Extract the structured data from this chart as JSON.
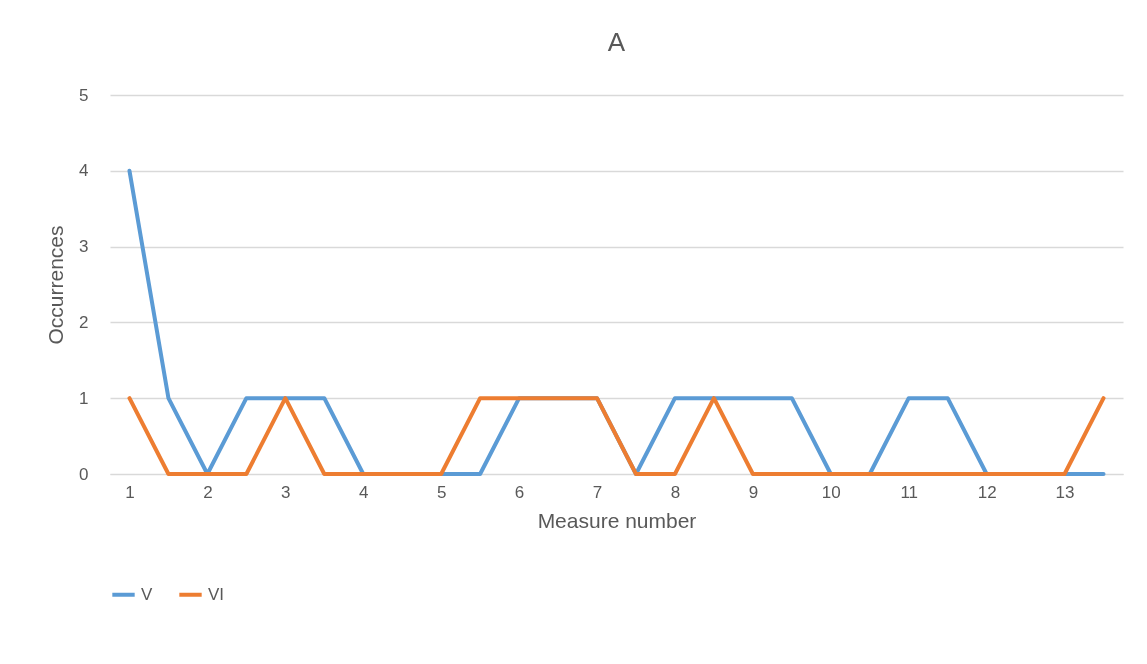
{
  "chart_data": {
    "type": "line",
    "title": "A",
    "xlabel": "Measure number",
    "ylabel": "Occurrences",
    "x": [
      1,
      1.5,
      2,
      2.5,
      3,
      3.5,
      4,
      4.5,
      5,
      5.5,
      6,
      6.5,
      7,
      7.5,
      8,
      8.5,
      9,
      9.5,
      10,
      10.5,
      11,
      11.5,
      12,
      12.5,
      13,
      13.5
    ],
    "series": [
      {
        "name": "V",
        "color": "#5b9bd5",
        "values": [
          4,
          1,
          0,
          1,
          1,
          1,
          0,
          0,
          0,
          0,
          1,
          1,
          1,
          0,
          1,
          1,
          1,
          1,
          0,
          0,
          1,
          1,
          0,
          0,
          0,
          0
        ]
      },
      {
        "name": "VI",
        "color": "#ed7d31",
        "values": [
          1,
          0,
          0,
          0,
          1,
          0,
          0,
          0,
          0,
          1,
          1,
          1,
          1,
          0,
          0,
          1,
          0,
          0,
          0,
          0,
          0,
          0,
          0,
          0,
          0,
          1
        ]
      }
    ],
    "xlim": [
      0.75,
      13.75
    ],
    "xticks": [
      1,
      2,
      3,
      4,
      5,
      6,
      7,
      8,
      9,
      10,
      11,
      12,
      13
    ],
    "ylim": [
      0,
      5
    ],
    "yticks": [
      0,
      1,
      2,
      3,
      4,
      5
    ],
    "grid": "y",
    "legend": "bottom"
  }
}
